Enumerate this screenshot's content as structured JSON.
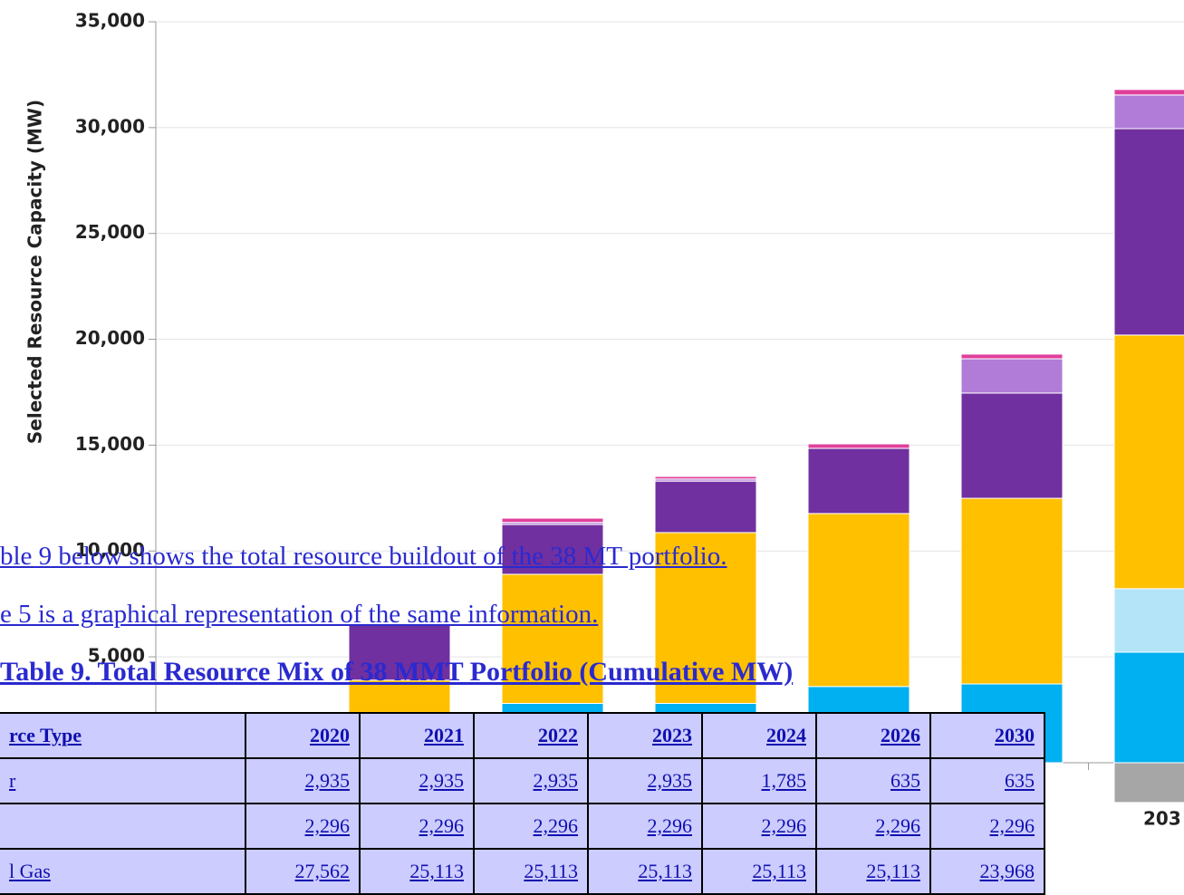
{
  "chart_data": {
    "type": "bar",
    "stacked": true,
    "ylabel": "Selected Resource Capacity (MW)",
    "categories": [
      null,
      null,
      null,
      null,
      null,
      null,
      "203"
    ],
    "series": [
      {
        "color": "#a6a6a6",
        "values": [
          0,
          0,
          0,
          0,
          0,
          0,
          -1880
        ]
      },
      {
        "color": "#00b0f0",
        "values": [
          0,
          0,
          2800,
          2800,
          3600,
          3720,
          5220
        ]
      },
      {
        "color": "#b4e4f8",
        "values": [
          0,
          0,
          0,
          0,
          0,
          0,
          3000
        ]
      },
      {
        "color": "#ffc000",
        "values": [
          0,
          3900,
          6100,
          8070,
          8170,
          8770,
          11980
        ]
      },
      {
        "color": "#7030a0",
        "values": [
          0,
          2600,
          2350,
          2430,
          3080,
          4970,
          9750
        ]
      },
      {
        "color": "#b07cd8",
        "values": [
          0,
          0,
          100,
          100,
          0,
          1620,
          1590
        ]
      },
      {
        "color": "#e0409c",
        "values": [
          0,
          50,
          200,
          120,
          210,
          220,
          260
        ]
      }
    ],
    "ylim": [
      -4880,
      35000
    ],
    "yticks": [
      {
        "value": 5000,
        "label": "5,000"
      },
      {
        "value": 10000,
        "label": "10,000"
      },
      {
        "value": 15000,
        "label": "15,000"
      },
      {
        "value": 20000,
        "label": "20,000"
      },
      {
        "value": 25000,
        "label": "25,000"
      },
      {
        "value": 30000,
        "label": "30,000"
      },
      {
        "value": 35000,
        "label": "35,000"
      }
    ],
    "grid": true
  },
  "document": {
    "lines": [
      "ble 9 below shows the total resource buildout of the 38 MT portfolio.",
      "e 5 is a graphical representation of the same information."
    ],
    "table_title": "Table 9. Total Resource Mix of 38 MMT Portfolio (Cumulative MW)",
    "table": {
      "header": [
        "rce Type",
        "2020",
        "2021",
        "2022",
        "2023",
        "2024",
        "2026",
        "2030"
      ],
      "rows": [
        [
          "r",
          "2,935",
          "2,935",
          "2,935",
          "2,935",
          "1,785",
          "635",
          "635"
        ],
        [
          "",
          "2,296",
          "2,296",
          "2,296",
          "2,296",
          "2,296",
          "2,296",
          "2,296"
        ],
        [
          "l Gas",
          "27,562",
          "25,113",
          "25,113",
          "25,113",
          "25,113",
          "25,113",
          "23,968"
        ]
      ]
    }
  }
}
